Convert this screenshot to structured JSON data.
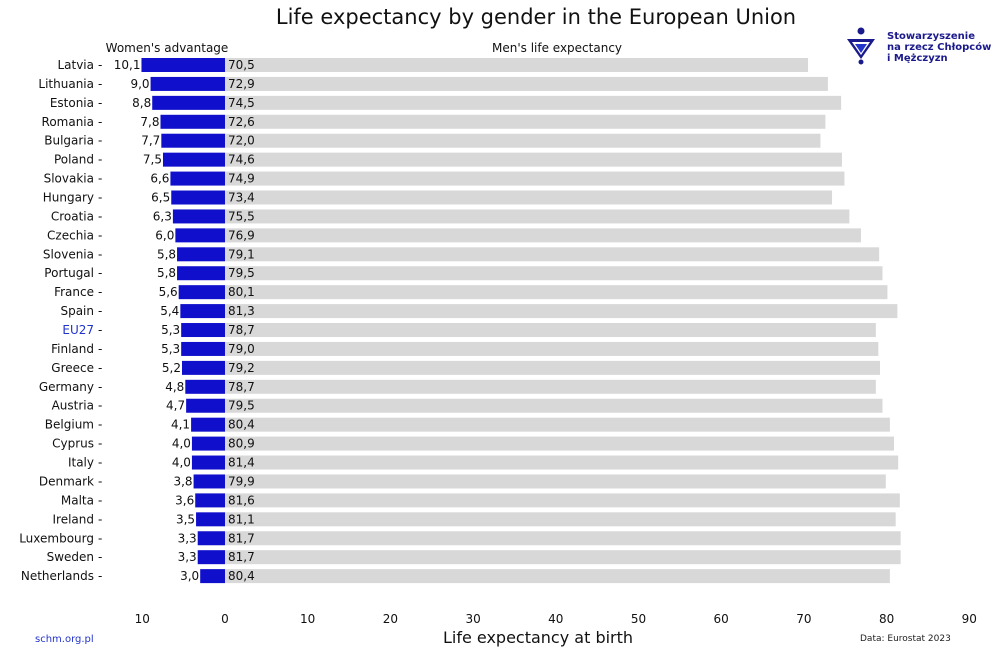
{
  "title": "Life expectancy by gender in the European Union",
  "logo": {
    "name": "schm-logo-icon",
    "lines": [
      "Stowarzyszenie",
      "na rzecz Chłopców",
      "i Mężczyzn"
    ]
  },
  "footer": {
    "source_site": "schm.org.pl",
    "data_source": "Data: Eurostat 2023"
  },
  "chart_data": {
    "type": "bar",
    "xlabel": "Life expectancy at birth",
    "xlim": [
      -10,
      90
    ],
    "xticks": [
      "10",
      "0",
      "10",
      "20",
      "30",
      "40",
      "50",
      "60",
      "70",
      "80",
      "90"
    ],
    "highlight": "EU27",
    "colors": {
      "women_advantage": "#1010cc",
      "men": "#d8d8d8",
      "highlight_label": "#2233cc"
    },
    "categories": [
      "Latvia",
      "Lithuania",
      "Estonia",
      "Romania",
      "Bulgaria",
      "Poland",
      "Slovakia",
      "Hungary",
      "Croatia",
      "Czechia",
      "Slovenia",
      "Portugal",
      "France",
      "Spain",
      "EU27",
      "Finland",
      "Greece",
      "Germany",
      "Austria",
      "Belgium",
      "Cyprus",
      "Italy",
      "Denmark",
      "Malta",
      "Ireland",
      "Luxembourg",
      "Sweden",
      "Netherlands"
    ],
    "series": [
      {
        "name": "Women's advantage",
        "values": [
          10.1,
          9.0,
          8.8,
          7.8,
          7.7,
          7.5,
          6.6,
          6.5,
          6.3,
          6.0,
          5.8,
          5.8,
          5.6,
          5.4,
          5.3,
          5.3,
          5.2,
          4.8,
          4.7,
          4.1,
          4.0,
          4.0,
          3.8,
          3.6,
          3.5,
          3.3,
          3.3,
          3.0
        ],
        "labels": [
          "10,1",
          "9,0",
          "8,8",
          "7,8",
          "7,7",
          "7,5",
          "6,6",
          "6,5",
          "6,3",
          "6,0",
          "5,8",
          "5,8",
          "5,6",
          "5,4",
          "5,3",
          "5,3",
          "5,2",
          "4,8",
          "4,7",
          "4,1",
          "4,0",
          "4,0",
          "3,8",
          "3,6",
          "3,5",
          "3,3",
          "3,3",
          "3,0"
        ]
      },
      {
        "name": "Men's life expectancy",
        "values": [
          70.5,
          72.9,
          74.5,
          72.6,
          72.0,
          74.6,
          74.9,
          73.4,
          75.5,
          76.9,
          79.1,
          79.5,
          80.1,
          81.3,
          78.7,
          79.0,
          79.2,
          78.7,
          79.5,
          80.4,
          80.9,
          81.4,
          79.9,
          81.6,
          81.1,
          81.7,
          81.7,
          80.4
        ],
        "labels": [
          "70,5",
          "72,9",
          "74,5",
          "72,6",
          "72,0",
          "74,6",
          "74,9",
          "73,4",
          "75,5",
          "76,9",
          "79,1",
          "79,5",
          "80,1",
          "81,3",
          "78,7",
          "79,0",
          "79,2",
          "78,7",
          "79,5",
          "80,4",
          "80,9",
          "81,4",
          "79,9",
          "81,6",
          "81,1",
          "81,7",
          "81,7",
          "80,4"
        ]
      }
    ]
  }
}
